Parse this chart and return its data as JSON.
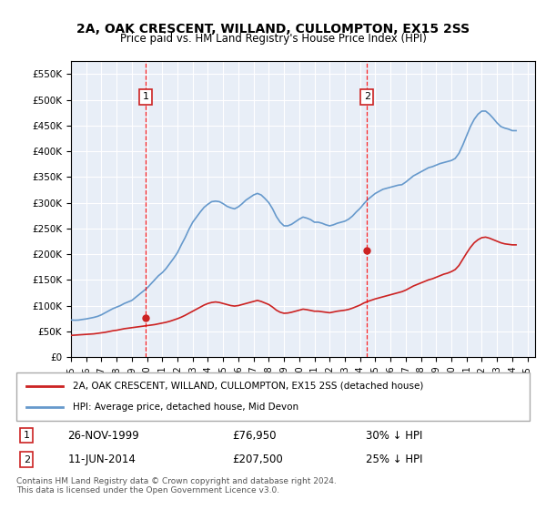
{
  "title": "2A, OAK CRESCENT, WILLAND, CULLOMPTON, EX15 2SS",
  "subtitle": "Price paid vs. HM Land Registry's House Price Index (HPI)",
  "xlabel": "",
  "ylabel": "",
  "ylim": [
    0,
    575000
  ],
  "xlim_start": 1995.0,
  "xlim_end": 2025.5,
  "yticks": [
    0,
    50000,
    100000,
    150000,
    200000,
    250000,
    300000,
    350000,
    400000,
    450000,
    500000,
    550000
  ],
  "ytick_labels": [
    "£0",
    "£50K",
    "£100K",
    "£150K",
    "£200K",
    "£250K",
    "£300K",
    "£350K",
    "£400K",
    "£450K",
    "£500K",
    "£550K"
  ],
  "background_color": "#e8eef7",
  "plot_bg_color": "#e8eef7",
  "grid_color": "#ffffff",
  "line_color_hpi": "#6699cc",
  "line_color_price": "#cc2222",
  "marker1_x": 1999.9,
  "marker1_y": 76950,
  "marker1_label": "1",
  "marker1_date": "26-NOV-1999",
  "marker1_price": "£76,950",
  "marker1_pct": "30% ↓ HPI",
  "marker2_x": 2014.45,
  "marker2_y": 207500,
  "marker2_label": "2",
  "marker2_date": "11-JUN-2014",
  "marker2_price": "£207,500",
  "marker2_pct": "25% ↓ HPI",
  "legend_line1": "2A, OAK CRESCENT, WILLAND, CULLOMPTON, EX15 2SS (detached house)",
  "legend_line2": "HPI: Average price, detached house, Mid Devon",
  "footer": "Contains HM Land Registry data © Crown copyright and database right 2024.\nThis data is licensed under the Open Government Licence v3.0.",
  "hpi_years": [
    1995.0,
    1995.25,
    1995.5,
    1995.75,
    1996.0,
    1996.25,
    1996.5,
    1996.75,
    1997.0,
    1997.25,
    1997.5,
    1997.75,
    1998.0,
    1998.25,
    1998.5,
    1998.75,
    1999.0,
    1999.25,
    1999.5,
    1999.75,
    2000.0,
    2000.25,
    2000.5,
    2000.75,
    2001.0,
    2001.25,
    2001.5,
    2001.75,
    2002.0,
    2002.25,
    2002.5,
    2002.75,
    2003.0,
    2003.25,
    2003.5,
    2003.75,
    2004.0,
    2004.25,
    2004.5,
    2004.75,
    2005.0,
    2005.25,
    2005.5,
    2005.75,
    2006.0,
    2006.25,
    2006.5,
    2006.75,
    2007.0,
    2007.25,
    2007.5,
    2007.75,
    2008.0,
    2008.25,
    2008.5,
    2008.75,
    2009.0,
    2009.25,
    2009.5,
    2009.75,
    2010.0,
    2010.25,
    2010.5,
    2010.75,
    2011.0,
    2011.25,
    2011.5,
    2011.75,
    2012.0,
    2012.25,
    2012.5,
    2012.75,
    2013.0,
    2013.25,
    2013.5,
    2013.75,
    2014.0,
    2014.25,
    2014.5,
    2014.75,
    2015.0,
    2015.25,
    2015.5,
    2015.75,
    2016.0,
    2016.25,
    2016.5,
    2016.75,
    2017.0,
    2017.25,
    2017.5,
    2017.75,
    2018.0,
    2018.25,
    2018.5,
    2018.75,
    2019.0,
    2019.25,
    2019.5,
    2019.75,
    2020.0,
    2020.25,
    2020.5,
    2020.75,
    2021.0,
    2021.25,
    2021.5,
    2021.75,
    2022.0,
    2022.25,
    2022.5,
    2022.75,
    2023.0,
    2023.25,
    2023.5,
    2023.75,
    2024.0,
    2024.25
  ],
  "hpi_values": [
    72000,
    71500,
    71800,
    73000,
    74000,
    75500,
    77000,
    79000,
    82000,
    86000,
    90000,
    94000,
    97000,
    100000,
    104000,
    107000,
    110000,
    116000,
    122000,
    128000,
    134000,
    142000,
    150000,
    158000,
    164000,
    172000,
    182000,
    192000,
    203000,
    218000,
    232000,
    248000,
    262000,
    272000,
    282000,
    291000,
    297000,
    302000,
    303000,
    302000,
    298000,
    293000,
    290000,
    288000,
    292000,
    298000,
    305000,
    310000,
    315000,
    318000,
    315000,
    308000,
    300000,
    288000,
    273000,
    262000,
    255000,
    255000,
    258000,
    263000,
    268000,
    272000,
    270000,
    267000,
    262000,
    262000,
    260000,
    257000,
    255000,
    257000,
    260000,
    262000,
    264000,
    268000,
    274000,
    282000,
    289000,
    298000,
    306000,
    312000,
    318000,
    322000,
    326000,
    328000,
    330000,
    332000,
    334000,
    335000,
    340000,
    346000,
    352000,
    356000,
    360000,
    364000,
    368000,
    370000,
    373000,
    376000,
    378000,
    380000,
    382000,
    386000,
    396000,
    412000,
    430000,
    448000,
    462000,
    472000,
    478000,
    478000,
    472000,
    464000,
    455000,
    448000,
    445000,
    443000,
    440000,
    440000
  ],
  "price_years": [
    1995.0,
    1995.25,
    1995.5,
    1995.75,
    1996.0,
    1996.25,
    1996.5,
    1996.75,
    1997.0,
    1997.25,
    1997.5,
    1997.75,
    1998.0,
    1998.25,
    1998.5,
    1998.75,
    1999.0,
    1999.25,
    1999.5,
    1999.75,
    2000.0,
    2000.25,
    2000.5,
    2000.75,
    2001.0,
    2001.25,
    2001.5,
    2001.75,
    2002.0,
    2002.25,
    2002.5,
    2002.75,
    2003.0,
    2003.25,
    2003.5,
    2003.75,
    2004.0,
    2004.25,
    2004.5,
    2004.75,
    2005.0,
    2005.25,
    2005.5,
    2005.75,
    2006.0,
    2006.25,
    2006.5,
    2006.75,
    2007.0,
    2007.25,
    2007.5,
    2007.75,
    2008.0,
    2008.25,
    2008.5,
    2008.75,
    2009.0,
    2009.25,
    2009.5,
    2009.75,
    2010.0,
    2010.25,
    2010.5,
    2010.75,
    2011.0,
    2011.25,
    2011.5,
    2011.75,
    2012.0,
    2012.25,
    2012.5,
    2012.75,
    2013.0,
    2013.25,
    2013.5,
    2013.75,
    2014.0,
    2014.25,
    2014.5,
    2014.75,
    2015.0,
    2015.25,
    2015.5,
    2015.75,
    2016.0,
    2016.25,
    2016.5,
    2016.75,
    2017.0,
    2017.25,
    2017.5,
    2017.75,
    2018.0,
    2018.25,
    2018.5,
    2018.75,
    2019.0,
    2019.25,
    2019.5,
    2019.75,
    2020.0,
    2020.25,
    2020.5,
    2020.75,
    2021.0,
    2021.25,
    2021.5,
    2021.75,
    2022.0,
    2022.25,
    2022.5,
    2022.75,
    2023.0,
    2023.25,
    2023.5,
    2023.75,
    2024.0,
    2024.25
  ],
  "price_values": [
    42000,
    42500,
    43000,
    43500,
    44000,
    44500,
    45000,
    46000,
    47000,
    48000,
    49500,
    51000,
    52000,
    53500,
    55000,
    56000,
    57000,
    58000,
    59000,
    60000,
    61000,
    62000,
    63000,
    64500,
    66000,
    67500,
    69500,
    72000,
    74500,
    77500,
    81000,
    85000,
    89000,
    93000,
    97000,
    101000,
    104000,
    106000,
    107000,
    106000,
    104000,
    102000,
    100000,
    99000,
    100000,
    102000,
    104000,
    106000,
    108000,
    110000,
    108000,
    105000,
    102000,
    97000,
    91000,
    87000,
    85000,
    85500,
    87000,
    89000,
    91000,
    93000,
    92000,
    90500,
    89000,
    89000,
    88000,
    87000,
    86000,
    87500,
    89000,
    90000,
    91000,
    92500,
    95000,
    98000,
    101000,
    105000,
    108000,
    110500,
    113000,
    115000,
    117000,
    119000,
    121000,
    123000,
    125000,
    127000,
    130000,
    134000,
    138000,
    141000,
    144000,
    147000,
    150000,
    152000,
    155000,
    158000,
    161000,
    163000,
    166000,
    170000,
    178000,
    190000,
    202000,
    213000,
    222000,
    228000,
    232000,
    233000,
    231000,
    228000,
    225000,
    222000,
    220000,
    219000,
    218000,
    218000
  ]
}
